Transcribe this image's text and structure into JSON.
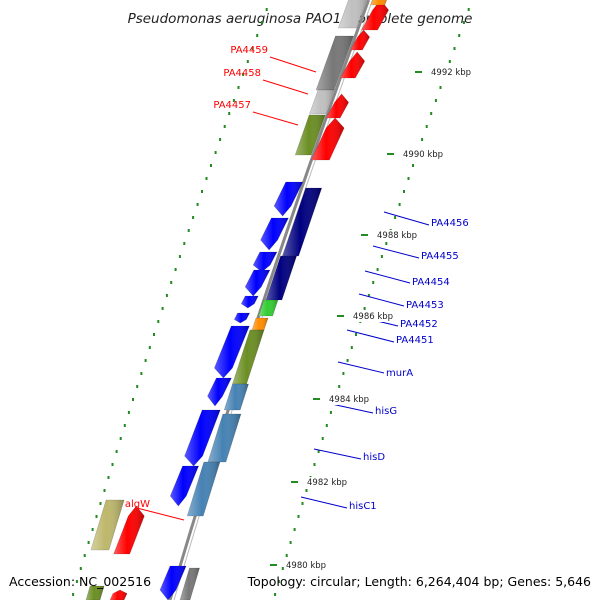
{
  "title": "Pseudomonas aeruginosa PAO1, complete genome",
  "footer": {
    "accession": "Accession: NC_002516",
    "summary": "Topology: circular; Length: 6,264,404 bp; Genes: 5,646"
  },
  "colors": {
    "red": "#ff0000",
    "blue": "#0000ff",
    "navy": "#000080",
    "olive": "#6b8e23",
    "steelblue": "#4682b4",
    "gray": "#777777",
    "silver": "#c0c0c0",
    "khaki": "#bdb76b",
    "green": "#32cd32",
    "orange": "#ff8c00",
    "tick": "#228b22",
    "backbone": "#888888",
    "label_red": "#ff0000",
    "label_blue": "#0000cc"
  },
  "scale_labels": [
    "4992 kbp",
    "4990 kbp",
    "4988 kbp",
    "4986 kbp",
    "4984 kbp",
    "4982 kbp",
    "4980 kbp"
  ],
  "genes": [
    {
      "label": "PA4459",
      "color": "red"
    },
    {
      "label": "PA4458",
      "color": "red"
    },
    {
      "label": "PA4457",
      "color": "red"
    },
    {
      "label": "PA4456",
      "color": "blue"
    },
    {
      "label": "PA4455",
      "color": "blue"
    },
    {
      "label": "PA4454",
      "color": "blue"
    },
    {
      "label": "PA4453",
      "color": "blue"
    },
    {
      "label": "PA4452",
      "color": "blue"
    },
    {
      "label": "PA4451",
      "color": "blue"
    },
    {
      "label": "murA",
      "color": "blue"
    },
    {
      "label": "hisG",
      "color": "blue"
    },
    {
      "label": "hisD",
      "color": "blue"
    },
    {
      "label": "hisC1",
      "color": "blue"
    },
    {
      "label": "algW",
      "color": "red"
    }
  ]
}
